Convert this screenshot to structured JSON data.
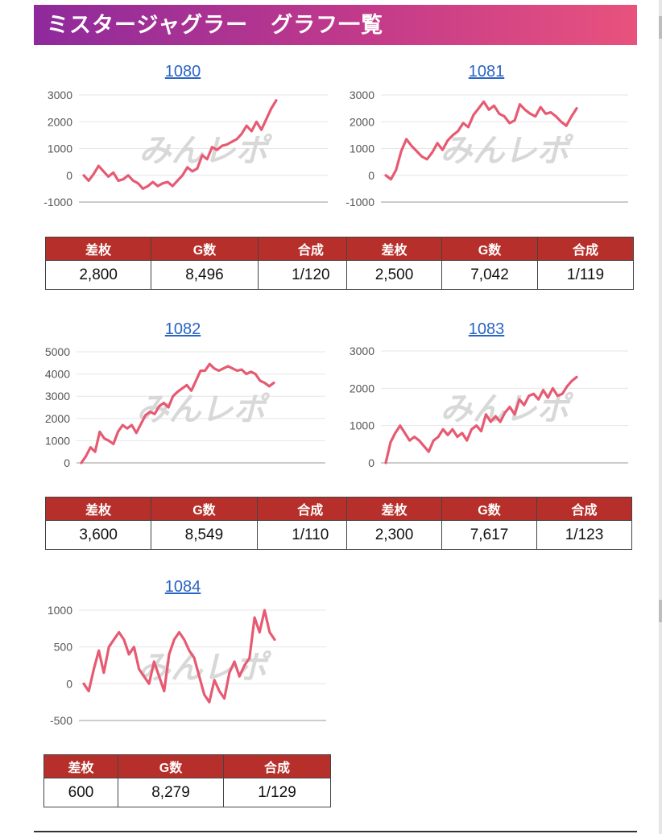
{
  "page": {
    "title": "ミスタージャグラー　グラフ一覧",
    "watermark": "みんレポ"
  },
  "colors": {
    "header_start": "#8e2a9c",
    "header_end": "#e8527d",
    "line": "#e65a72",
    "table_header": "#b72f2a",
    "link": "#2a64c4"
  },
  "table_headers": [
    "差枚",
    "G数",
    "合成"
  ],
  "chart_data": [
    {
      "type": "line",
      "title": "1080",
      "ylim": [
        -1000,
        3000
      ],
      "yticks": [
        -1000,
        0,
        1000,
        2000,
        3000
      ],
      "values": [
        0,
        -200,
        50,
        350,
        150,
        -50,
        100,
        -200,
        -150,
        0,
        -200,
        -300,
        -500,
        -400,
        -250,
        -400,
        -300,
        -250,
        -400,
        -200,
        0,
        300,
        150,
        250,
        750,
        600,
        1050,
        950,
        1100,
        1150,
        1250,
        1350,
        1550,
        1850,
        1650,
        2000,
        1700,
        2100,
        2500,
        2800
      ],
      "stats": {
        "diff": "2,800",
        "games": "8,496",
        "rate": "1/120"
      }
    },
    {
      "type": "line",
      "title": "1081",
      "ylim": [
        -1000,
        3000
      ],
      "yticks": [
        -1000,
        0,
        1000,
        2000,
        3000
      ],
      "values": [
        0,
        -150,
        200,
        900,
        1350,
        1100,
        900,
        700,
        600,
        850,
        1200,
        950,
        1300,
        1500,
        1650,
        1950,
        1800,
        2250,
        2500,
        2750,
        2450,
        2600,
        2300,
        2200,
        1950,
        2050,
        2650,
        2450,
        2300,
        2200,
        2550,
        2300,
        2350,
        2200,
        2000,
        1850,
        2200,
        2500
      ],
      "stats": {
        "diff": "2,500",
        "games": "7,042",
        "rate": "1/119"
      }
    },
    {
      "type": "line",
      "title": "1082",
      "ylim": [
        0,
        5000
      ],
      "yticks": [
        0,
        1000,
        2000,
        3000,
        4000,
        5000
      ],
      "values": [
        0,
        300,
        700,
        500,
        1400,
        1100,
        1000,
        850,
        1400,
        1700,
        1550,
        1700,
        1350,
        1750,
        2150,
        2300,
        2200,
        2550,
        2700,
        2500,
        3000,
        3200,
        3350,
        3500,
        3250,
        3700,
        4150,
        4150,
        4450,
        4250,
        4150,
        4250,
        4350,
        4250,
        4150,
        4200,
        4000,
        4100,
        4000,
        3700,
        3600,
        3450,
        3600
      ],
      "stats": {
        "diff": "3,600",
        "games": "8,549",
        "rate": "1/110"
      }
    },
    {
      "type": "line",
      "title": "1083",
      "ylim": [
        0,
        3000
      ],
      "yticks": [
        0,
        1000,
        2000,
        3000
      ],
      "values": [
        0,
        550,
        800,
        1000,
        800,
        600,
        700,
        600,
        450,
        300,
        600,
        700,
        900,
        750,
        900,
        700,
        800,
        600,
        900,
        1000,
        850,
        1300,
        1100,
        1250,
        1100,
        1350,
        1500,
        1300,
        1700,
        1550,
        1800,
        1850,
        1700,
        1950,
        1750,
        2000,
        1800,
        1850,
        2050,
        2200,
        2300
      ],
      "stats": {
        "diff": "2,300",
        "games": "7,617",
        "rate": "1/123"
      }
    },
    {
      "type": "line",
      "title": "1084",
      "ylim": [
        -500,
        1000
      ],
      "yticks": [
        -500,
        0,
        500,
        1000
      ],
      "values": [
        0,
        -100,
        200,
        450,
        150,
        500,
        600,
        700,
        600,
        400,
        500,
        200,
        100,
        0,
        300,
        100,
        -100,
        400,
        600,
        700,
        600,
        450,
        350,
        100,
        -150,
        -250,
        50,
        -100,
        -200,
        150,
        300,
        100,
        250,
        350,
        900,
        700,
        1000,
        700,
        600
      ],
      "stats": {
        "diff": "600",
        "games": "8,279",
        "rate": "1/129"
      }
    }
  ]
}
